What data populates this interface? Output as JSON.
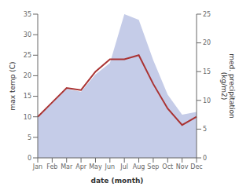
{
  "chart_data": {
    "type": "line",
    "categories": [
      "Jan",
      "Feb",
      "Mar",
      "Apr",
      "May",
      "Jun",
      "Jul",
      "Aug",
      "Sep",
      "Oct",
      "Nov",
      "Dec"
    ],
    "series": [
      {
        "type": "area",
        "color": "#c5cce8",
        "axis": "y2",
        "values": [
          7,
          9.5,
          12,
          11.5,
          14.5,
          16.5,
          25,
          24,
          17,
          11,
          7.5,
          8
        ]
      },
      {
        "type": "line",
        "color": "#aa3333",
        "values": [
          10,
          13.5,
          17,
          16.5,
          21,
          24,
          24,
          25,
          18,
          12,
          8,
          10
        ]
      }
    ],
    "xlabel": "date (month)",
    "ylabel": "max temp (C)",
    "y2label": "med. precipitation\n(kg/m2)",
    "ylim": [
      0,
      35
    ],
    "yticks": [
      0,
      5,
      10,
      15,
      20,
      25,
      30,
      35
    ],
    "y2lim": [
      0,
      25
    ],
    "y2ticks": [
      0,
      5,
      10,
      15,
      20,
      25
    ],
    "grid": false
  }
}
